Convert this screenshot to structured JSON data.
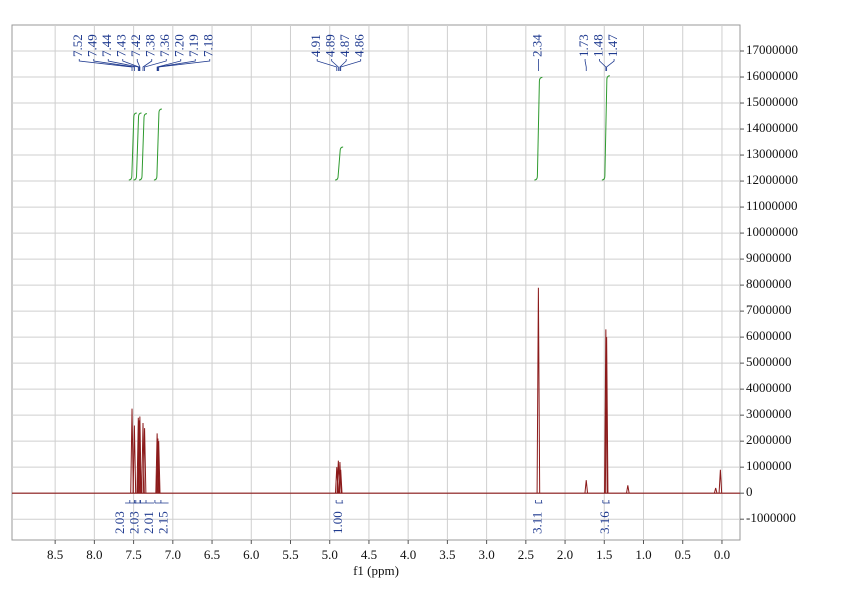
{
  "chart_data": {
    "type": "nmr",
    "x_label": "f1 (ppm)",
    "xlim": [
      9.05,
      -0.23
    ],
    "ylim": [
      -1800000,
      18000000
    ],
    "xticks": [
      8.5,
      {
        "value": 8,
        "label": "8.0"
      },
      7.5,
      {
        "value": 7,
        "label": "7.0"
      },
      6.5,
      {
        "value": 6,
        "label": "6.0"
      },
      5.5,
      {
        "value": 5,
        "label": "5.0"
      },
      4.5,
      {
        "value": 4,
        "label": "4.0"
      },
      3.5,
      {
        "value": 3,
        "label": "3.0"
      },
      2.5,
      {
        "value": 2,
        "label": "2.0"
      },
      1.5,
      {
        "value": 1,
        "label": "1.0"
      },
      0.5,
      {
        "value": 0,
        "label": "0.0"
      }
    ],
    "yticks": [
      -1000000,
      0,
      1000000,
      2000000,
      3000000,
      4000000,
      5000000,
      6000000,
      7000000,
      8000000,
      9000000,
      10000000,
      11000000,
      12000000,
      13000000,
      14000000,
      15000000,
      16000000,
      17000000
    ],
    "grid": true,
    "color": "#8b1a1a",
    "peaks": {
      "x": [
        7.52,
        7.49,
        7.44,
        7.43,
        7.42,
        7.38,
        7.36,
        7.2,
        7.19,
        7.18,
        4.91,
        4.89,
        4.87,
        4.86,
        2.34,
        1.73,
        1.48,
        1.47,
        1.2,
        0.08,
        0.02
      ],
      "values": [
        3250000,
        2600000,
        2900000,
        2800000,
        2950000,
        2700000,
        2500000,
        2300000,
        2100000,
        2000000,
        1000000,
        1250000,
        1200000,
        900000,
        7900000,
        500000,
        6300000,
        6000000,
        300000,
        200000,
        900000
      ]
    },
    "peak_labels": [
      7.52,
      7.49,
      7.44,
      7.43,
      7.42,
      7.38,
      7.36,
      {
        "value": 7.2,
        "label": "7.20"
      },
      7.19,
      7.18,
      4.91,
      4.89,
      4.87,
      4.86,
      2.34,
      1.73,
      1.48,
      1.47
    ],
    "integrals": {
      "x": [
        7.51,
        7.45,
        7.38,
        7.19,
        4.88,
        2.34,
        1.48
      ],
      "values": [
        2.03,
        2.03,
        2.01,
        2.15,
        1,
        3.11,
        3.16
      ],
      "value_labels": [
        "2.03",
        "2.03",
        "2.01",
        "2.15",
        "1.00",
        "3.11",
        "3.16"
      ]
    }
  }
}
